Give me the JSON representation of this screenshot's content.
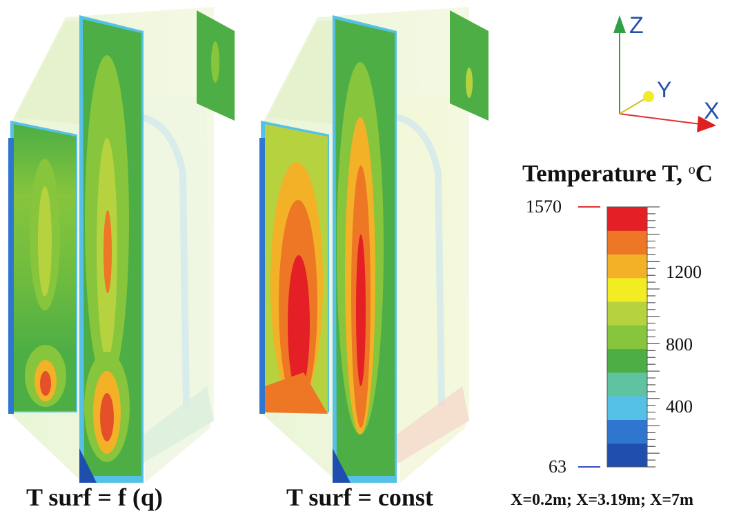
{
  "panels": [
    {
      "caption": "T surf = f (q)"
    },
    {
      "caption": "T surf = const"
    }
  ],
  "section_caption": "X=0.2m; X=3.19m; X=7m",
  "axes": {
    "z": "Z",
    "y": "Y",
    "x": "X"
  },
  "legend": {
    "title": "Temperature T, ",
    "unit_sup": "o",
    "unit": "C",
    "min_label": "63",
    "max_label": "1570",
    "labels": [
      "1200",
      "800",
      "400"
    ],
    "min": 63,
    "max": 1570,
    "bands": [
      "#1f4fae",
      "#2e76cf",
      "#55c1e6",
      "#5fc2a0",
      "#4cae45",
      "#86c53c",
      "#b6d23f",
      "#f2ec22",
      "#f3b127",
      "#ee7725",
      "#e41f25"
    ]
  }
}
